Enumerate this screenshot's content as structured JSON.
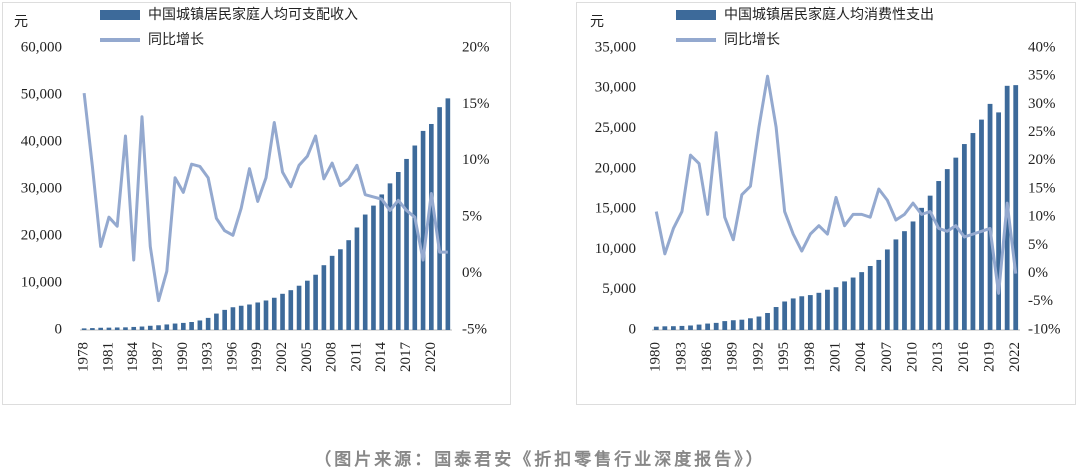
{
  "chart_data": [
    {
      "type": "bar",
      "y_unit": "元",
      "legend": "top-left",
      "grid": false,
      "categories": [
        "1978",
        null,
        null,
        "1981",
        null,
        null,
        "1984",
        null,
        null,
        "1987",
        null,
        null,
        "1990",
        null,
        null,
        "1993",
        null,
        null,
        "1996",
        null,
        null,
        "1999",
        null,
        null,
        "2002",
        null,
        null,
        "2005",
        null,
        null,
        "2008",
        null,
        null,
        "2011",
        null,
        null,
        "2014",
        null,
        null,
        "2017",
        null,
        null,
        "2020",
        null,
        null
      ],
      "series": [
        {
          "name": "中国城镇居民家庭人均可支配收入",
          "type": "bar",
          "color": "#3d6a9a",
          "values": [
            343,
            405,
            478,
            500,
            535,
            565,
            652,
            739,
            900,
            1002,
            1180,
            1374,
            1510,
            1701,
            2027,
            2577,
            3496,
            4283,
            4839,
            5160,
            5425,
            5854,
            6280,
            6860,
            7703,
            8472,
            9422,
            10493,
            11759,
            13786,
            15781,
            17175,
            19109,
            21810,
            24565,
            26467,
            28844,
            31195,
            33616,
            36396,
            39251,
            42359,
            43834,
            47412,
            49283
          ]
        },
        {
          "name": "同比增长",
          "type": "line",
          "axis": "y2",
          "color": "#94a9cf",
          "values": [
            16,
            9.5,
            2.4,
            5,
            4.2,
            12.2,
            1.2,
            13.9,
            2.4,
            -2.4,
            0.2,
            8.5,
            7.2,
            9.7,
            9.5,
            8.5,
            4.9,
            3.8,
            3.4,
            5.8,
            9.3,
            6.4,
            8.5,
            13.4,
            9,
            7.7,
            9.6,
            10.4,
            12.2,
            8.4,
            9.8,
            7.8,
            8.4,
            9.6,
            7,
            6.8,
            6.6,
            5.6,
            6.5,
            5.6,
            5,
            1.2,
            7.1,
            1.9,
            1.9
          ]
        }
      ],
      "ylim": [
        0,
        60000
      ],
      "yticks": [
        0,
        {
          "value": 10000,
          "label": "10,000"
        },
        {
          "value": 20000,
          "label": "20,000"
        },
        {
          "value": 30000,
          "label": "30,000"
        },
        {
          "value": 40000,
          "label": "40,000"
        },
        {
          "value": 50000,
          "label": "50,000"
        },
        {
          "value": 60000,
          "label": "60,000"
        }
      ],
      "y2lim": [
        -5,
        20
      ],
      "y2ticks": [
        {
          "value": -5,
          "label": "-5%"
        },
        {
          "value": 0,
          "label": "0%"
        },
        {
          "value": 5,
          "label": "5%"
        },
        {
          "value": 10,
          "label": "10%"
        },
        {
          "value": 15,
          "label": "15%"
        },
        {
          "value": 20,
          "label": "20%"
        }
      ]
    },
    {
      "type": "bar",
      "y_unit": "元",
      "legend": "top-left",
      "grid": false,
      "categories": [
        "1980",
        null,
        null,
        "1983",
        null,
        null,
        "1986",
        null,
        null,
        "1989",
        null,
        null,
        "1992",
        null,
        null,
        "1995",
        null,
        null,
        "1998",
        null,
        null,
        "2001",
        null,
        null,
        "2004",
        null,
        null,
        "2007",
        null,
        null,
        "2010",
        null,
        null,
        "2013",
        null,
        null,
        "2016",
        null,
        null,
        "2019",
        null,
        null,
        "2022"
      ],
      "series": [
        {
          "name": "中国城镇居民家庭人均消费性支出",
          "type": "bar",
          "color": "#3d6a9a",
          "values": [
            412,
            457,
            471,
            506,
            559,
            673,
            799,
            884,
            1104,
            1211,
            1279,
            1454,
            1672,
            2111,
            2851,
            3538,
            3919,
            4186,
            4332,
            4616,
            4998,
            5309,
            6030,
            6511,
            7182,
            7943,
            8697,
            9997,
            11243,
            12265,
            13471,
            15161,
            16674,
            18488,
            19968,
            21392,
            23079,
            24445,
            26112,
            28063,
            27007,
            30307,
            30391
          ]
        },
        {
          "name": "同比增长",
          "type": "line",
          "axis": "y2",
          "color": "#94a9cf",
          "values": [
            11,
            3.5,
            8,
            11,
            21,
            19.5,
            10.5,
            25,
            10,
            6,
            14,
            15.5,
            26,
            35,
            26,
            11,
            7,
            4,
            7,
            8.5,
            7,
            13.5,
            8.5,
            10.5,
            10.5,
            10,
            15,
            13,
            9.5,
            10.5,
            12.5,
            10.5,
            11,
            8,
            7.5,
            8.5,
            6.5,
            7,
            7.5,
            8,
            -3.5,
            12.5,
            0
          ]
        }
      ],
      "ylim": [
        0,
        35000
      ],
      "yticks": [
        0,
        {
          "value": 5000,
          "label": "5,000"
        },
        {
          "value": 10000,
          "label": "10,000"
        },
        {
          "value": 15000,
          "label": "15,000"
        },
        {
          "value": 20000,
          "label": "20,000"
        },
        {
          "value": 25000,
          "label": "25,000"
        },
        {
          "value": 30000,
          "label": "30,000"
        },
        {
          "value": 35000,
          "label": "35,000"
        }
      ],
      "y2lim": [
        -10,
        40
      ],
      "y2ticks": [
        {
          "value": -10,
          "label": "-10%"
        },
        {
          "value": -5,
          "label": "-5%"
        },
        {
          "value": 0,
          "label": "0%"
        },
        {
          "value": 5,
          "label": "5%"
        },
        {
          "value": 10,
          "label": "10%"
        },
        {
          "value": 15,
          "label": "15%"
        },
        {
          "value": 20,
          "label": "20%"
        },
        {
          "value": 25,
          "label": "25%"
        },
        {
          "value": 30,
          "label": "30%"
        },
        {
          "value": 35,
          "label": "35%"
        },
        {
          "value": 40,
          "label": "40%"
        }
      ]
    }
  ],
  "caption": "（图片来源：国泰君安《折扣零售行业深度报告》）"
}
